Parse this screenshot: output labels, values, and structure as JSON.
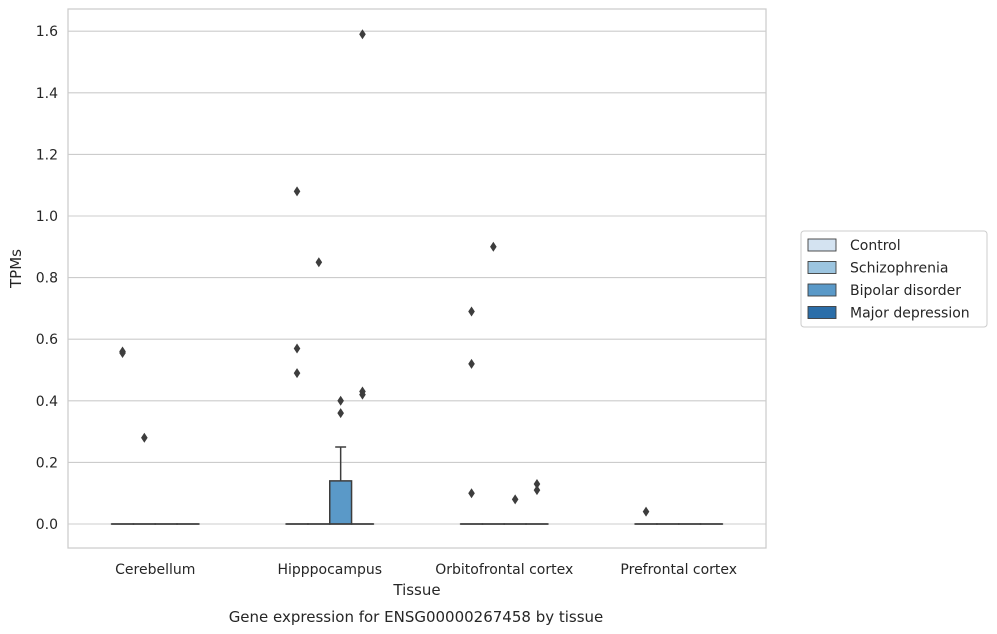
{
  "chart_data": {
    "type": "box",
    "xlabel": "Tissue",
    "ylabel": "TPMs",
    "caption": "Gene expression for ENSG00000267458 by tissue",
    "ylim": [
      -0.08,
      1.67
    ],
    "yticks": [
      "0.0",
      "0.2",
      "0.4",
      "0.6",
      "0.8",
      "1.0",
      "1.2",
      "1.4",
      "1.6"
    ],
    "grid": "horizontal",
    "legend_position": "right",
    "categories": [
      "Cerebellum",
      "Hipppocampus",
      "Orbitofrontal cortex",
      "Prefrontal cortex"
    ],
    "series": [
      {
        "name": "Control",
        "color": "#d4e3f1",
        "boxes": [
          {
            "min": 0,
            "q1": 0,
            "median": 0,
            "q3": 0,
            "max": 0,
            "outliers": [
              0.56,
              0.555
            ]
          },
          {
            "min": 0,
            "q1": 0,
            "median": 0,
            "q3": 0,
            "max": 0,
            "outliers": [
              1.08,
              0.57,
              0.49
            ]
          },
          {
            "min": 0,
            "q1": 0,
            "median": 0,
            "q3": 0,
            "max": 0,
            "outliers": [
              0.69,
              0.52,
              0.1
            ]
          },
          {
            "min": 0,
            "q1": 0,
            "median": 0,
            "q3": 0,
            "max": 0,
            "outliers": [
              0.04
            ]
          }
        ]
      },
      {
        "name": "Schizophrenia",
        "color": "#9cc5e0",
        "boxes": [
          {
            "min": 0,
            "q1": 0,
            "median": 0,
            "q3": 0,
            "max": 0,
            "outliers": [
              0.28
            ]
          },
          {
            "min": 0,
            "q1": 0,
            "median": 0,
            "q3": 0,
            "max": 0,
            "outliers": [
              0.85
            ]
          },
          {
            "min": 0,
            "q1": 0,
            "median": 0,
            "q3": 0,
            "max": 0,
            "outliers": [
              0.9
            ]
          },
          {
            "min": 0,
            "q1": 0,
            "median": 0,
            "q3": 0,
            "max": 0,
            "outliers": []
          }
        ]
      },
      {
        "name": "Bipolar disorder",
        "color": "#5a99c8",
        "boxes": [
          {
            "min": 0,
            "q1": 0,
            "median": 0,
            "q3": 0,
            "max": 0,
            "outliers": []
          },
          {
            "min": 0,
            "q1": 0,
            "median": 0,
            "q3": 0.14,
            "max": 0.25,
            "outliers": [
              0.4,
              0.36
            ]
          },
          {
            "min": 0,
            "q1": 0,
            "median": 0,
            "q3": 0,
            "max": 0,
            "outliers": [
              0.08
            ]
          },
          {
            "min": 0,
            "q1": 0,
            "median": 0,
            "q3": 0,
            "max": 0,
            "outliers": []
          }
        ]
      },
      {
        "name": "Major depression",
        "color": "#2b6ea9",
        "boxes": [
          {
            "min": 0,
            "q1": 0,
            "median": 0,
            "q3": 0,
            "max": 0,
            "outliers": []
          },
          {
            "min": 0,
            "q1": 0,
            "median": 0,
            "q3": 0,
            "max": 0,
            "outliers": [
              1.59,
              0.43,
              0.42
            ]
          },
          {
            "min": 0,
            "q1": 0,
            "median": 0,
            "q3": 0,
            "max": 0,
            "outliers": [
              0.13,
              0.11
            ]
          },
          {
            "min": 0,
            "q1": 0,
            "median": 0,
            "q3": 0,
            "max": 0,
            "outliers": []
          }
        ]
      }
    ]
  }
}
